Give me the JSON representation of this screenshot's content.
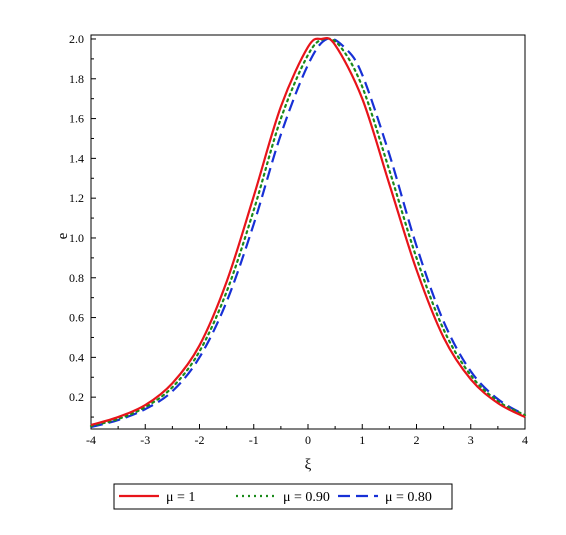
{
  "chart_data": {
    "type": "line",
    "xlabel": "ξ",
    "ylabel": "e",
    "xlim": [
      -4,
      4
    ],
    "ylim": [
      0.04,
      2.02
    ],
    "x_ticks": [
      -4,
      -3,
      -2,
      -1,
      0,
      1,
      2,
      3,
      4
    ],
    "y_ticks": [
      "0.2",
      "0.4",
      "0.6",
      "0.8",
      "1.0",
      "1.2",
      "1.4",
      "1.6",
      "1.8",
      "2.0"
    ],
    "grid": false,
    "legend_position": "bottom",
    "series": [
      {
        "name": "μ = 1",
        "color": "#e8141a",
        "style": "solid",
        "x": [
          -4,
          -3.5,
          -3,
          -2.5,
          -2,
          -1.5,
          -1,
          -0.5,
          0,
          0.25,
          0.5,
          1,
          1.5,
          2,
          2.5,
          3,
          3.5,
          4
        ],
        "y": [
          0.06,
          0.1,
          0.16,
          0.27,
          0.46,
          0.78,
          1.21,
          1.66,
          1.96,
          2.0,
          1.97,
          1.7,
          1.27,
          0.84,
          0.5,
          0.29,
          0.17,
          0.1
        ]
      },
      {
        "name": "μ = 0.90",
        "color": "#1a8a1a",
        "style": "dotted",
        "x": [
          -4,
          -3.5,
          -3,
          -2.5,
          -2,
          -1.5,
          -1,
          -0.5,
          0,
          0.3,
          0.6,
          1,
          1.5,
          2,
          2.5,
          3,
          3.5,
          4
        ],
        "y": [
          0.055,
          0.09,
          0.15,
          0.25,
          0.43,
          0.73,
          1.14,
          1.6,
          1.92,
          2.0,
          1.96,
          1.76,
          1.34,
          0.9,
          0.54,
          0.31,
          0.18,
          0.11
        ]
      },
      {
        "name": "μ = 0.80",
        "color": "#1730d6",
        "style": "dashed",
        "x": [
          -4,
          -3.5,
          -3,
          -2.5,
          -2,
          -1.5,
          -1,
          -0.5,
          0,
          0.35,
          0.7,
          1,
          1.5,
          2,
          2.5,
          3,
          3.5,
          4
        ],
        "y": [
          0.05,
          0.085,
          0.14,
          0.23,
          0.4,
          0.68,
          1.07,
          1.52,
          1.87,
          2.0,
          1.95,
          1.82,
          1.42,
          0.96,
          0.58,
          0.33,
          0.19,
          0.11
        ]
      }
    ]
  }
}
